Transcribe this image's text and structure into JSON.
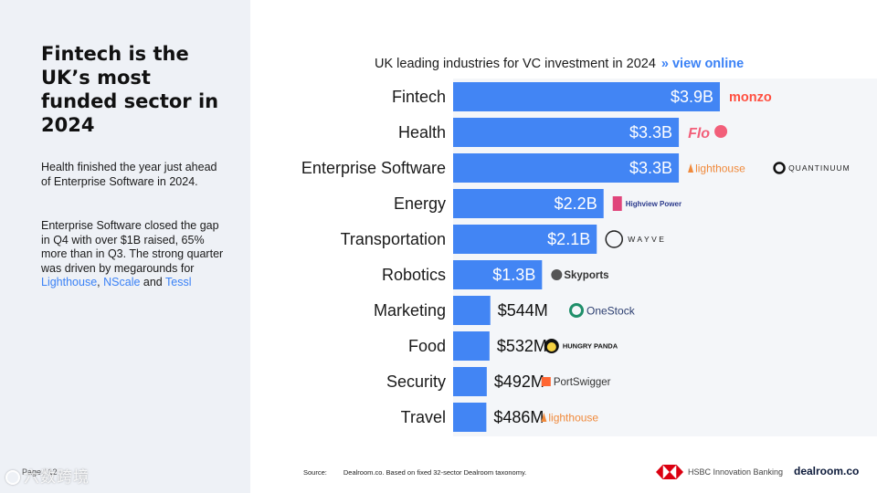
{
  "sidebar": {
    "headline": "Fintech is the UK’s most funded sector in 2024",
    "para1": "Health finished the year just ahead of Enterprise Software in 2024.",
    "para2_text": "Enterprise Software closed the gap in Q4 with over $1B raised, 65% more than in Q3. The strong quarter was driven by megarounds for ",
    "link1": "Lighthouse",
    "sep1": ", ",
    "link2": "NScale",
    "sep2": " and ",
    "link3": "Tessl",
    "link_color": "#3b82f6"
  },
  "footer": {
    "page": "Page / 12",
    "watermark": "六数跨境",
    "source_label": "Source:",
    "source_text": "Dealroom.co. Based on fixed 32-sector Dealroom taxonomy.",
    "hsbc_text": "HSBC Innovation Banking",
    "dealroom": "dealroom.co"
  },
  "chart_data": {
    "type": "bar",
    "orientation": "horizontal",
    "title": "UK leading industries for VC investment in 2024",
    "title_link": "» view online",
    "bar_color": "#4285f4",
    "unit": "USD",
    "xlim": [
      0,
      3.9
    ],
    "categories": [
      "Fintech",
      "Health",
      "Enterprise Software",
      "Energy",
      "Transportation",
      "Robotics",
      "Marketing",
      "Food",
      "Security",
      "Travel"
    ],
    "values": [
      3.9,
      3.3,
      3.3,
      2.2,
      2.1,
      1.3,
      0.544,
      0.532,
      0.492,
      0.486
    ],
    "labels": [
      "$3.9B",
      "$3.3B",
      "$3.3B",
      "$2.2B",
      "$2.1B",
      "$1.3B",
      "$544M",
      "$532M",
      "$492M",
      "$486M"
    ],
    "companies": [
      [
        "monzo"
      ],
      [
        "Flo"
      ],
      [
        "lighthouse",
        "QUANTINUUM"
      ],
      [
        "Highview Power"
      ],
      [
        "WAYVE"
      ],
      [
        "Skyports"
      ],
      [
        "OneStock"
      ],
      [
        "HUNGRY PANDA"
      ],
      [
        "PortSwigger"
      ],
      [
        "lighthouse"
      ]
    ]
  }
}
